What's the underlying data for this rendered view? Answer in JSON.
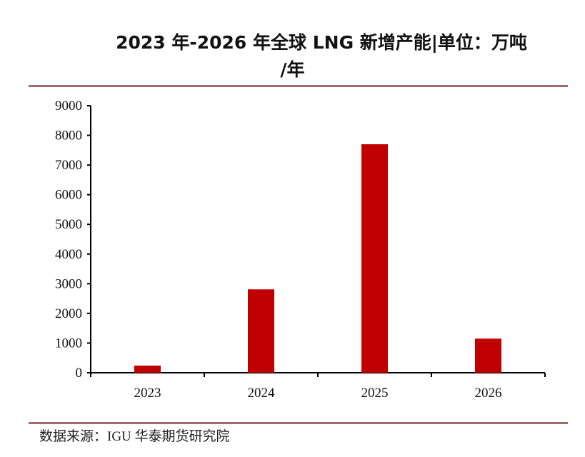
{
  "title_line1": "2023 年-2026 年全球 LNG 新增产能|单位：万吨",
  "title_line2": "/年",
  "source": "数据来源：IGU 华泰期货研究院",
  "colors": {
    "bar": "#c00000",
    "rule": "#a66a6a"
  },
  "chart_data": {
    "type": "bar",
    "title": "2023 年-2026 年全球 LNG 新增产能|单位：万吨/年",
    "categories": [
      "2023",
      "2024",
      "2025",
      "2026"
    ],
    "values": [
      240,
      2810,
      7700,
      1150
    ],
    "xlabel": "",
    "ylabel": "",
    "ylim": [
      0,
      9000
    ],
    "yticks": [
      "0",
      "1000",
      "2000",
      "3000",
      "4000",
      "5000",
      "6000",
      "7000",
      "8000",
      "9000"
    ],
    "grid": false,
    "legend": "none"
  }
}
